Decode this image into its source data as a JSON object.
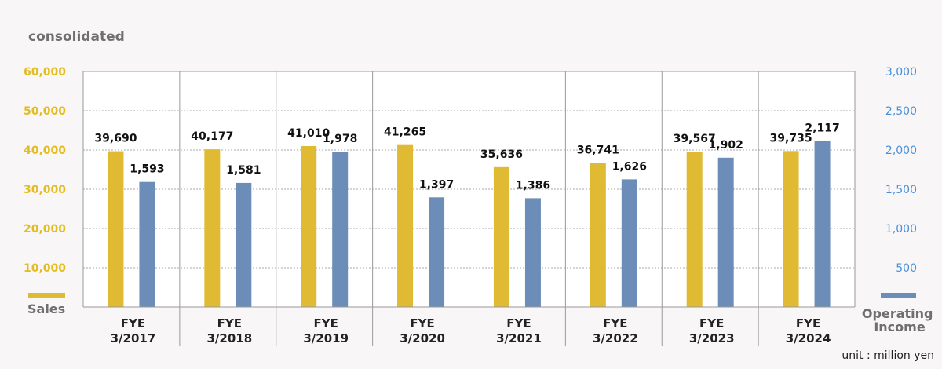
{
  "subtitle": "consolidated",
  "unit_note": "unit : million yen",
  "colors": {
    "sales": "#dfba32",
    "operating_income": "#6b8db7",
    "left_axis": "#e3bd1f",
    "right_axis": "#4a90d9"
  },
  "chart_data": {
    "type": "bar",
    "categories": [
      [
        "FYE",
        "3/2017"
      ],
      [
        "FYE",
        "3/2018"
      ],
      [
        "FYE",
        "3/2019"
      ],
      [
        "FYE",
        "3/2020"
      ],
      [
        "FYE",
        "3/2021"
      ],
      [
        "FYE",
        "3/2022"
      ],
      [
        "FYE",
        "3/2023"
      ],
      [
        "FYE",
        "3/2024"
      ]
    ],
    "series": [
      {
        "name": "Sales",
        "axis": "left",
        "values": [
          39690,
          40177,
          41010,
          41265,
          35636,
          36741,
          39567,
          39735
        ],
        "labels": [
          "39,690",
          "40,177",
          "41,010",
          "41,265",
          "35,636",
          "36,741",
          "39,567",
          "39,735"
        ]
      },
      {
        "name_lines": [
          "Operating",
          "Income"
        ],
        "axis": "right",
        "values": [
          1593,
          1581,
          1978,
          1397,
          1386,
          1626,
          1902,
          2117
        ],
        "labels": [
          "1,593",
          "1,581",
          "1,978",
          "1,397",
          "1,386",
          "1,626",
          "1,902",
          "2,117"
        ]
      }
    ],
    "left_axis": {
      "ylim": [
        0,
        60000
      ],
      "ticks": [
        10000,
        20000,
        30000,
        40000,
        50000,
        60000
      ],
      "tick_labels": [
        "10,000",
        "20,000",
        "30,000",
        "40,000",
        "50,000",
        "60,000"
      ]
    },
    "right_axis": {
      "ylim": [
        0,
        3000
      ],
      "ticks": [
        500,
        1000,
        1500,
        2000,
        2500,
        3000
      ],
      "tick_labels": [
        "500",
        "1,000",
        "1,500",
        "2,000",
        "2,500",
        "3,000"
      ]
    },
    "grid": true
  }
}
